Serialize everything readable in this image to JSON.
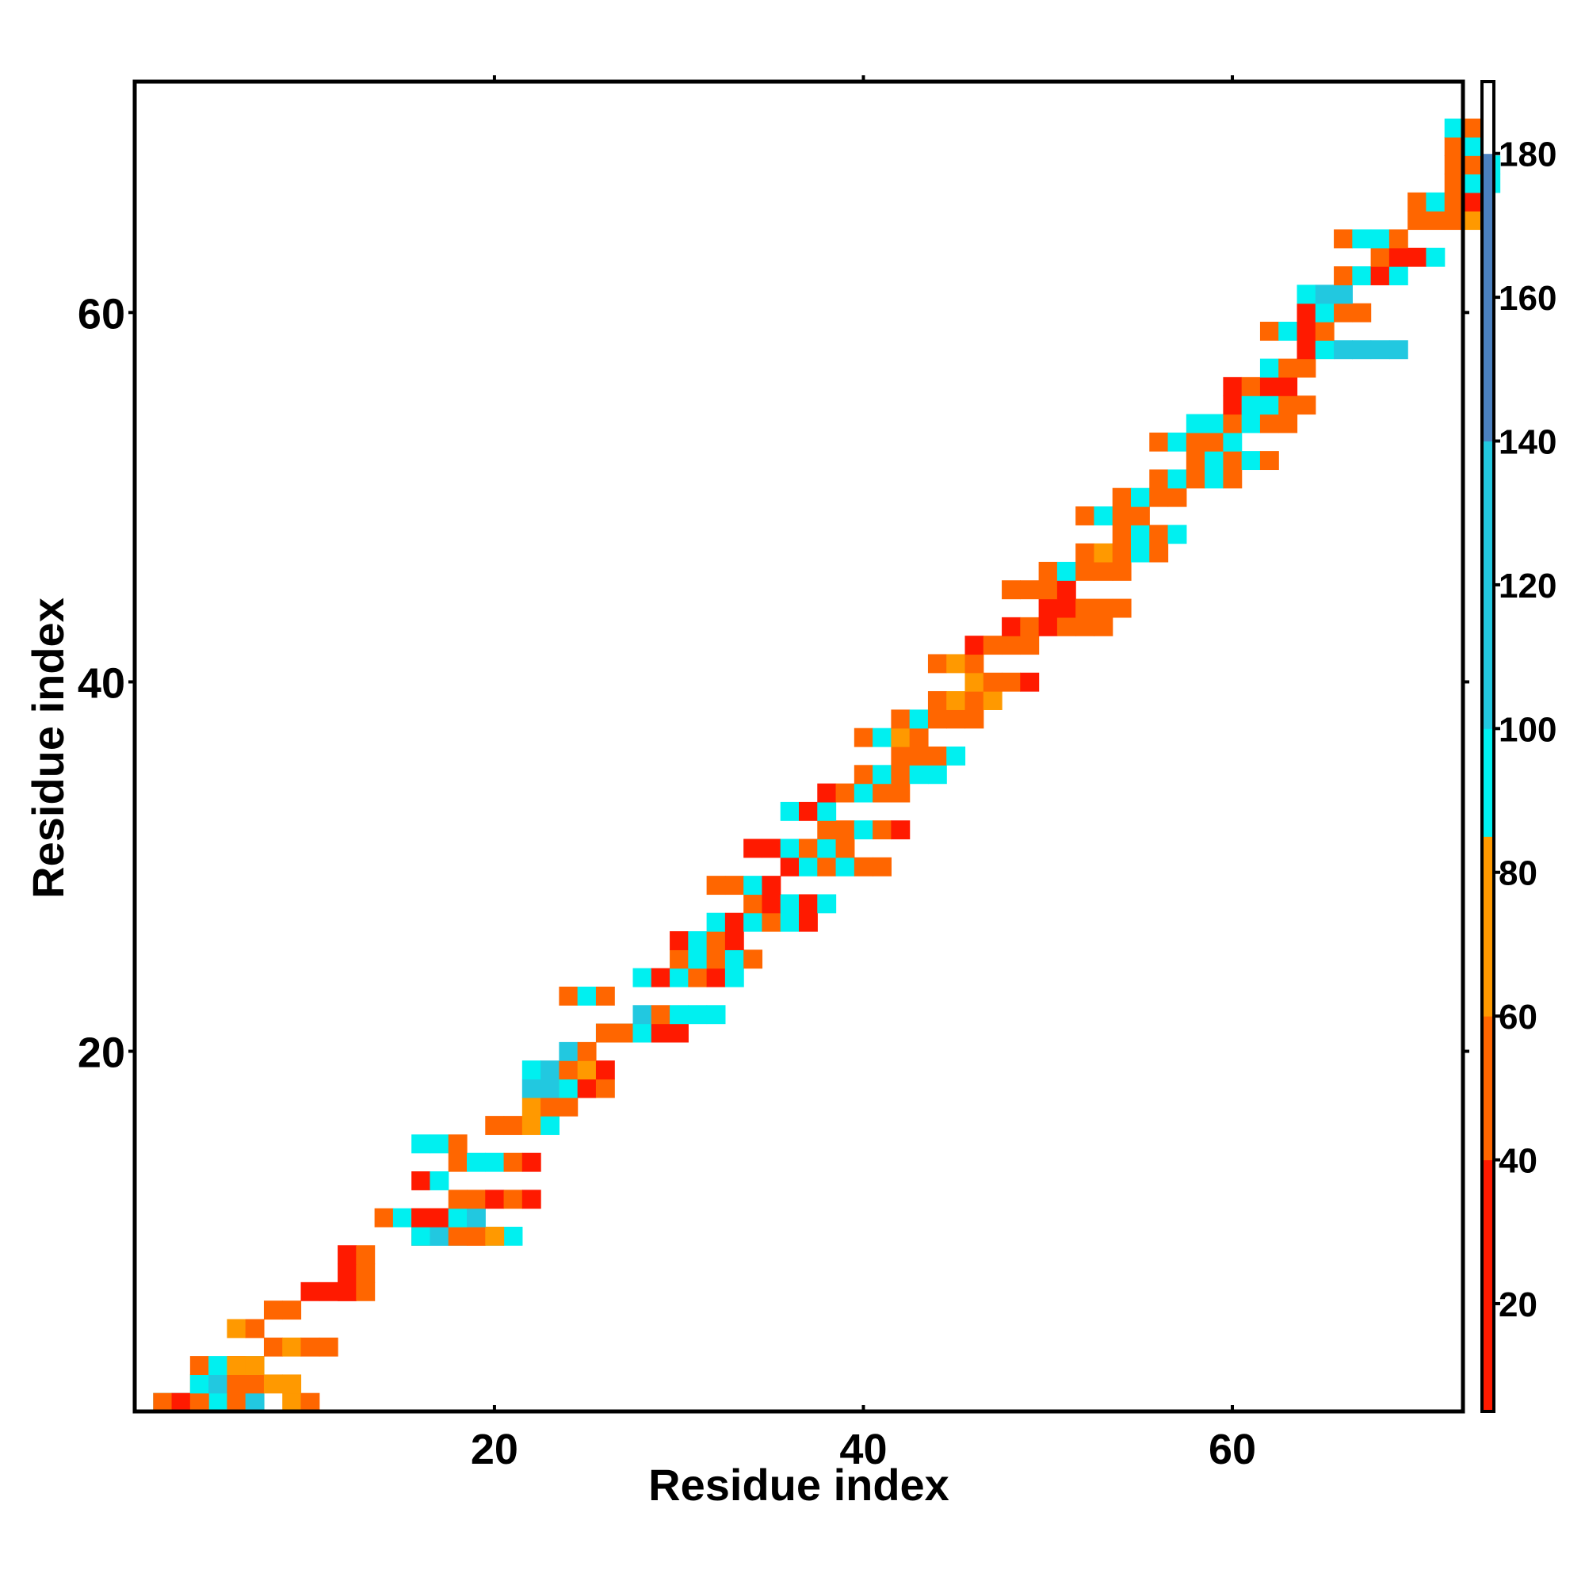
{
  "chart_data": {
    "type": "heatmap",
    "title": "",
    "xlabel": "Residue index",
    "ylabel": "Residue index",
    "xlim": [
      1,
      72
    ],
    "ylim": [
      1,
      72
    ],
    "x_ticks": [
      20,
      40,
      60
    ],
    "y_ticks": [
      20,
      40,
      60
    ],
    "grid": false,
    "colorbar": {
      "placement": "right",
      "ticks": [
        20,
        40,
        60,
        80,
        100,
        120,
        140,
        160,
        180
      ],
      "range": [
        5,
        190
      ],
      "colors": [
        {
          "from": 5,
          "to": 40,
          "color": "#ff1a00"
        },
        {
          "from": 40,
          "to": 60,
          "color": "#ff6600"
        },
        {
          "from": 60,
          "to": 85,
          "color": "#ff9900"
        },
        {
          "from": 85,
          "to": 100,
          "color": "#00f0f0"
        },
        {
          "from": 100,
          "to": 140,
          "color": "#22c8e0"
        },
        {
          "from": 140,
          "to": 180,
          "color": "#4a80c0"
        },
        {
          "from": 180,
          "to": 190,
          "color": "#ffffff"
        }
      ]
    },
    "cell_value_by_code": {
      "R": 20,
      "O": 50,
      "A": 70,
      "C": 95,
      "B": 120
    },
    "cells": [
      "1:6:R",
      "1:4:RCRO",
      "1:2:CC.OR",
      "1:4:CCOB.AO",
      "1:2:ORO",
      "2:4:OC",
      "2:4:CBOOAA",
      "3:6:RC",
      "3:4:OCAA",
      "4:8:OAOO",
      "5:6:AO",
      "6:8:OO",
      "7:10:RRR",
      "7:12:RO",
      "8:12:RO",
      "9:12:RO",
      "10:16:RBCOCC",
      "10:16:CBOOA",
      "11:14:OCOOC",
      "11:16:RRCB",
      "12:18:OOROR",
      "13:16:RC",
      "14:18:OCCOR",
      "15:16:CCO",
      "16:20:OOAC",
      "17:22:AOO",
      "18:22:BBOR",
      "18:24:CRO",
      "19:22:CBOAR",
      "20:24:BO",
      "21:26:CCOC",
      "21:26:OOCRR",
      "22:28:BOCCC",
      "23:24:OCO",
      "24:28:CRCORC",
      "25:30:OCOCO",
      "26:30:RCOR",
      "27:32:CRCOCR",
      "28:34:ORCRC",
      "29:32:OOCR",
      "30:36:RCOCOO",
      "31:34:RRCOCO",
      "32:38:OOCOR",
      "33:36:CRC",
      "34:38:ROCOO",
      "35:40:OCOCC",
      "36:42:OOOC",
      "37:40:OCAO",
      "38:42:OCOOO",
      "39:44:OAOA",
      "40:46:AOOR",
      "41:44:OAO",
      "42:46:ROOO",
      "43:48:ROROOO",
      "44:50:RROOO",
      "45:48:OOOR",
      "46:50:OCOOO",
      "47:52:OAOCO",
      "48:54:OCOC",
      "49:52:OCOO",
      "50:54:OCOO",
      "51:56:OCOCO",
      "52:58:OCOCO",
      "53:56:OCOOC",
      "54:58:CCOCOO",
      "55:60:RCCOO",
      "56:60:RORR",
      "57:62:COO",
      "58:64:RCBBBB",
      "59:62:OCRO",
      "60:64:RCOO",
      "61:64:CBB",
      "62:66:OCRC",
      "63:68:ORRC",
      "64:66:OCCO",
      "65:70:OOOA",
      "66:70:OCOR",
      "67:72:OCC",
      "68:72:OOC",
      "69:72:OC",
      "70:72:CO"
    ]
  }
}
